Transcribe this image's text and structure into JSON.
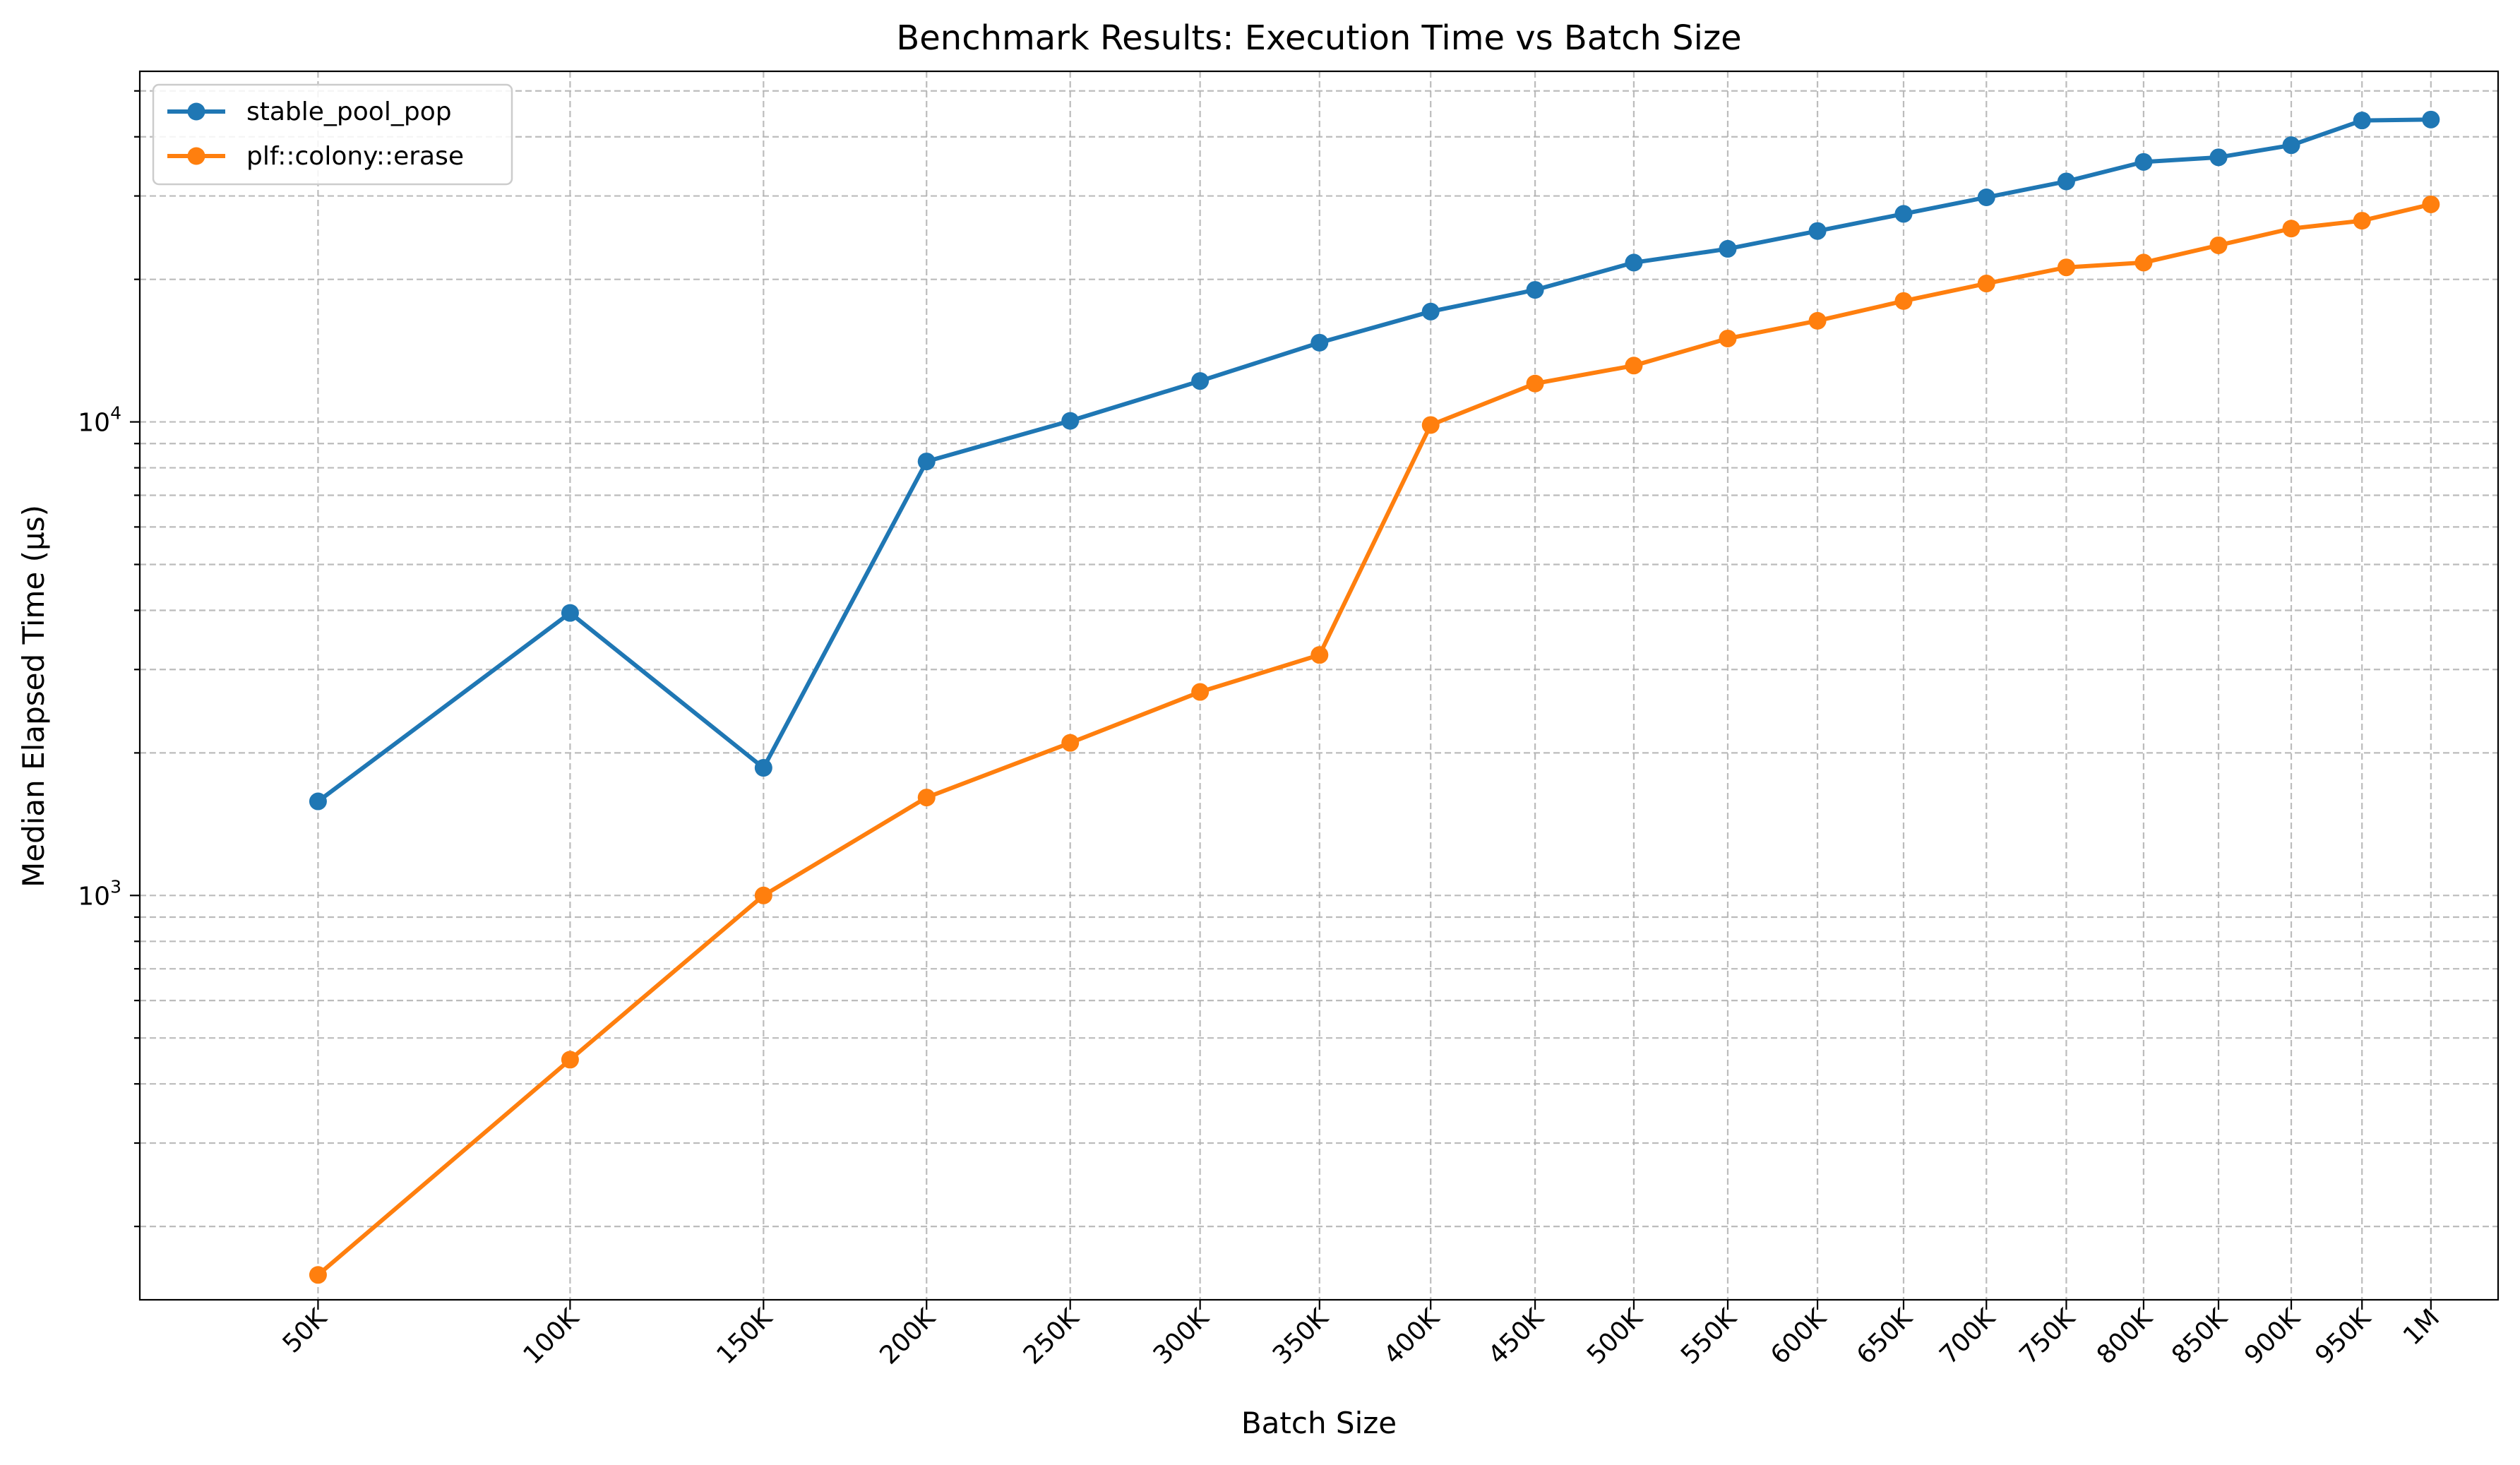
{
  "chart_data": {
    "type": "line",
    "title": "Benchmark Results: Execution Time vs Batch Size",
    "xlabel": "Batch Size",
    "ylabel": "Median Elapsed Time (µs)",
    "x_scale": "sqrt",
    "y_scale": "log",
    "xlim": [
      25000,
      1050000
    ],
    "ylim": [
      140,
      55000
    ],
    "grid": true,
    "legend_position": "upper-left",
    "x": [
      50000,
      100000,
      150000,
      200000,
      250000,
      300000,
      350000,
      400000,
      450000,
      500000,
      550000,
      600000,
      650000,
      700000,
      750000,
      800000,
      850000,
      900000,
      950000,
      1000000
    ],
    "x_tick_labels": [
      "50K",
      "100K",
      "150K",
      "200K",
      "250K",
      "300K",
      "350K",
      "400K",
      "450K",
      "500K",
      "550K",
      "600K",
      "650K",
      "700K",
      "750K",
      "800K",
      "850K",
      "900K",
      "950K",
      "1M"
    ],
    "y_major_ticks": [
      {
        "value": 1000,
        "base": "10",
        "exp": "3"
      },
      {
        "value": 10000,
        "base": "10",
        "exp": "4"
      }
    ],
    "series": [
      {
        "name": "stable_pool_pop",
        "color": "#1f77b4",
        "values": [
          1580,
          3950,
          1860,
          8250,
          10050,
          12200,
          14700,
          17100,
          19000,
          21700,
          23200,
          25300,
          27500,
          29800,
          32200,
          35400,
          36200,
          38400,
          43300,
          43500
        ]
      },
      {
        "name": "plf::colony::erase",
        "color": "#ff7f0e",
        "values": [
          158,
          450,
          1000,
          1610,
          2100,
          2690,
          3220,
          9850,
          12050,
          13150,
          15000,
          16350,
          18000,
          19600,
          21200,
          21700,
          23600,
          25600,
          26600,
          28800
        ]
      }
    ]
  }
}
